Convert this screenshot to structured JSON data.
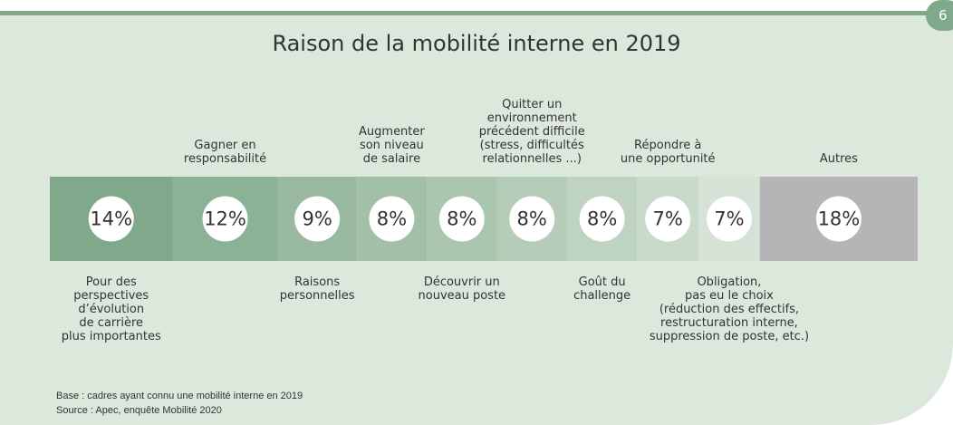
{
  "page_number": "6",
  "chart_data": {
    "type": "bar",
    "title": "Raison de la mobilité interne en 2019",
    "categories": [
      "Pour des\nperspectives\nd’évolution\nde carrière\nplus importantes",
      "Gagner en\nresponsabilité",
      "Raisons\npersonnelles",
      "Augmenter\nson niveau\nde salaire",
      "Découvrir un\nnouveau poste",
      "Quitter un\nenvironnement\nprécédent difficile\n(stress, difficultés\nrelationnelles ...)",
      "Goût du\nchallenge",
      "Répondre à\nune opportunité",
      "Obligation,\npas eu le choix\n(réduction des effectifs,\nrestructuration interne,\nsuppression de poste, etc.)",
      "Autres"
    ],
    "values": [
      14,
      12,
      9,
      8,
      8,
      8,
      8,
      7,
      7,
      18
    ],
    "value_labels": [
      "14%",
      "12%",
      "9%",
      "8%",
      "8%",
      "8%",
      "8%",
      "7%",
      "7%",
      "18%"
    ],
    "colors": [
      "#7fa98a",
      "#8bb294",
      "#98b99f",
      "#a2c0a8",
      "#aac6af",
      "#b4ccb8",
      "#bed3c1",
      "#c8dac9",
      "#d6e2d5",
      "#b5b5b8"
    ],
    "notes": [
      "Base : cadres ayant connu une mobilité interne en 2019",
      "Source : Apec, enquête Mobilité 2020"
    ]
  }
}
